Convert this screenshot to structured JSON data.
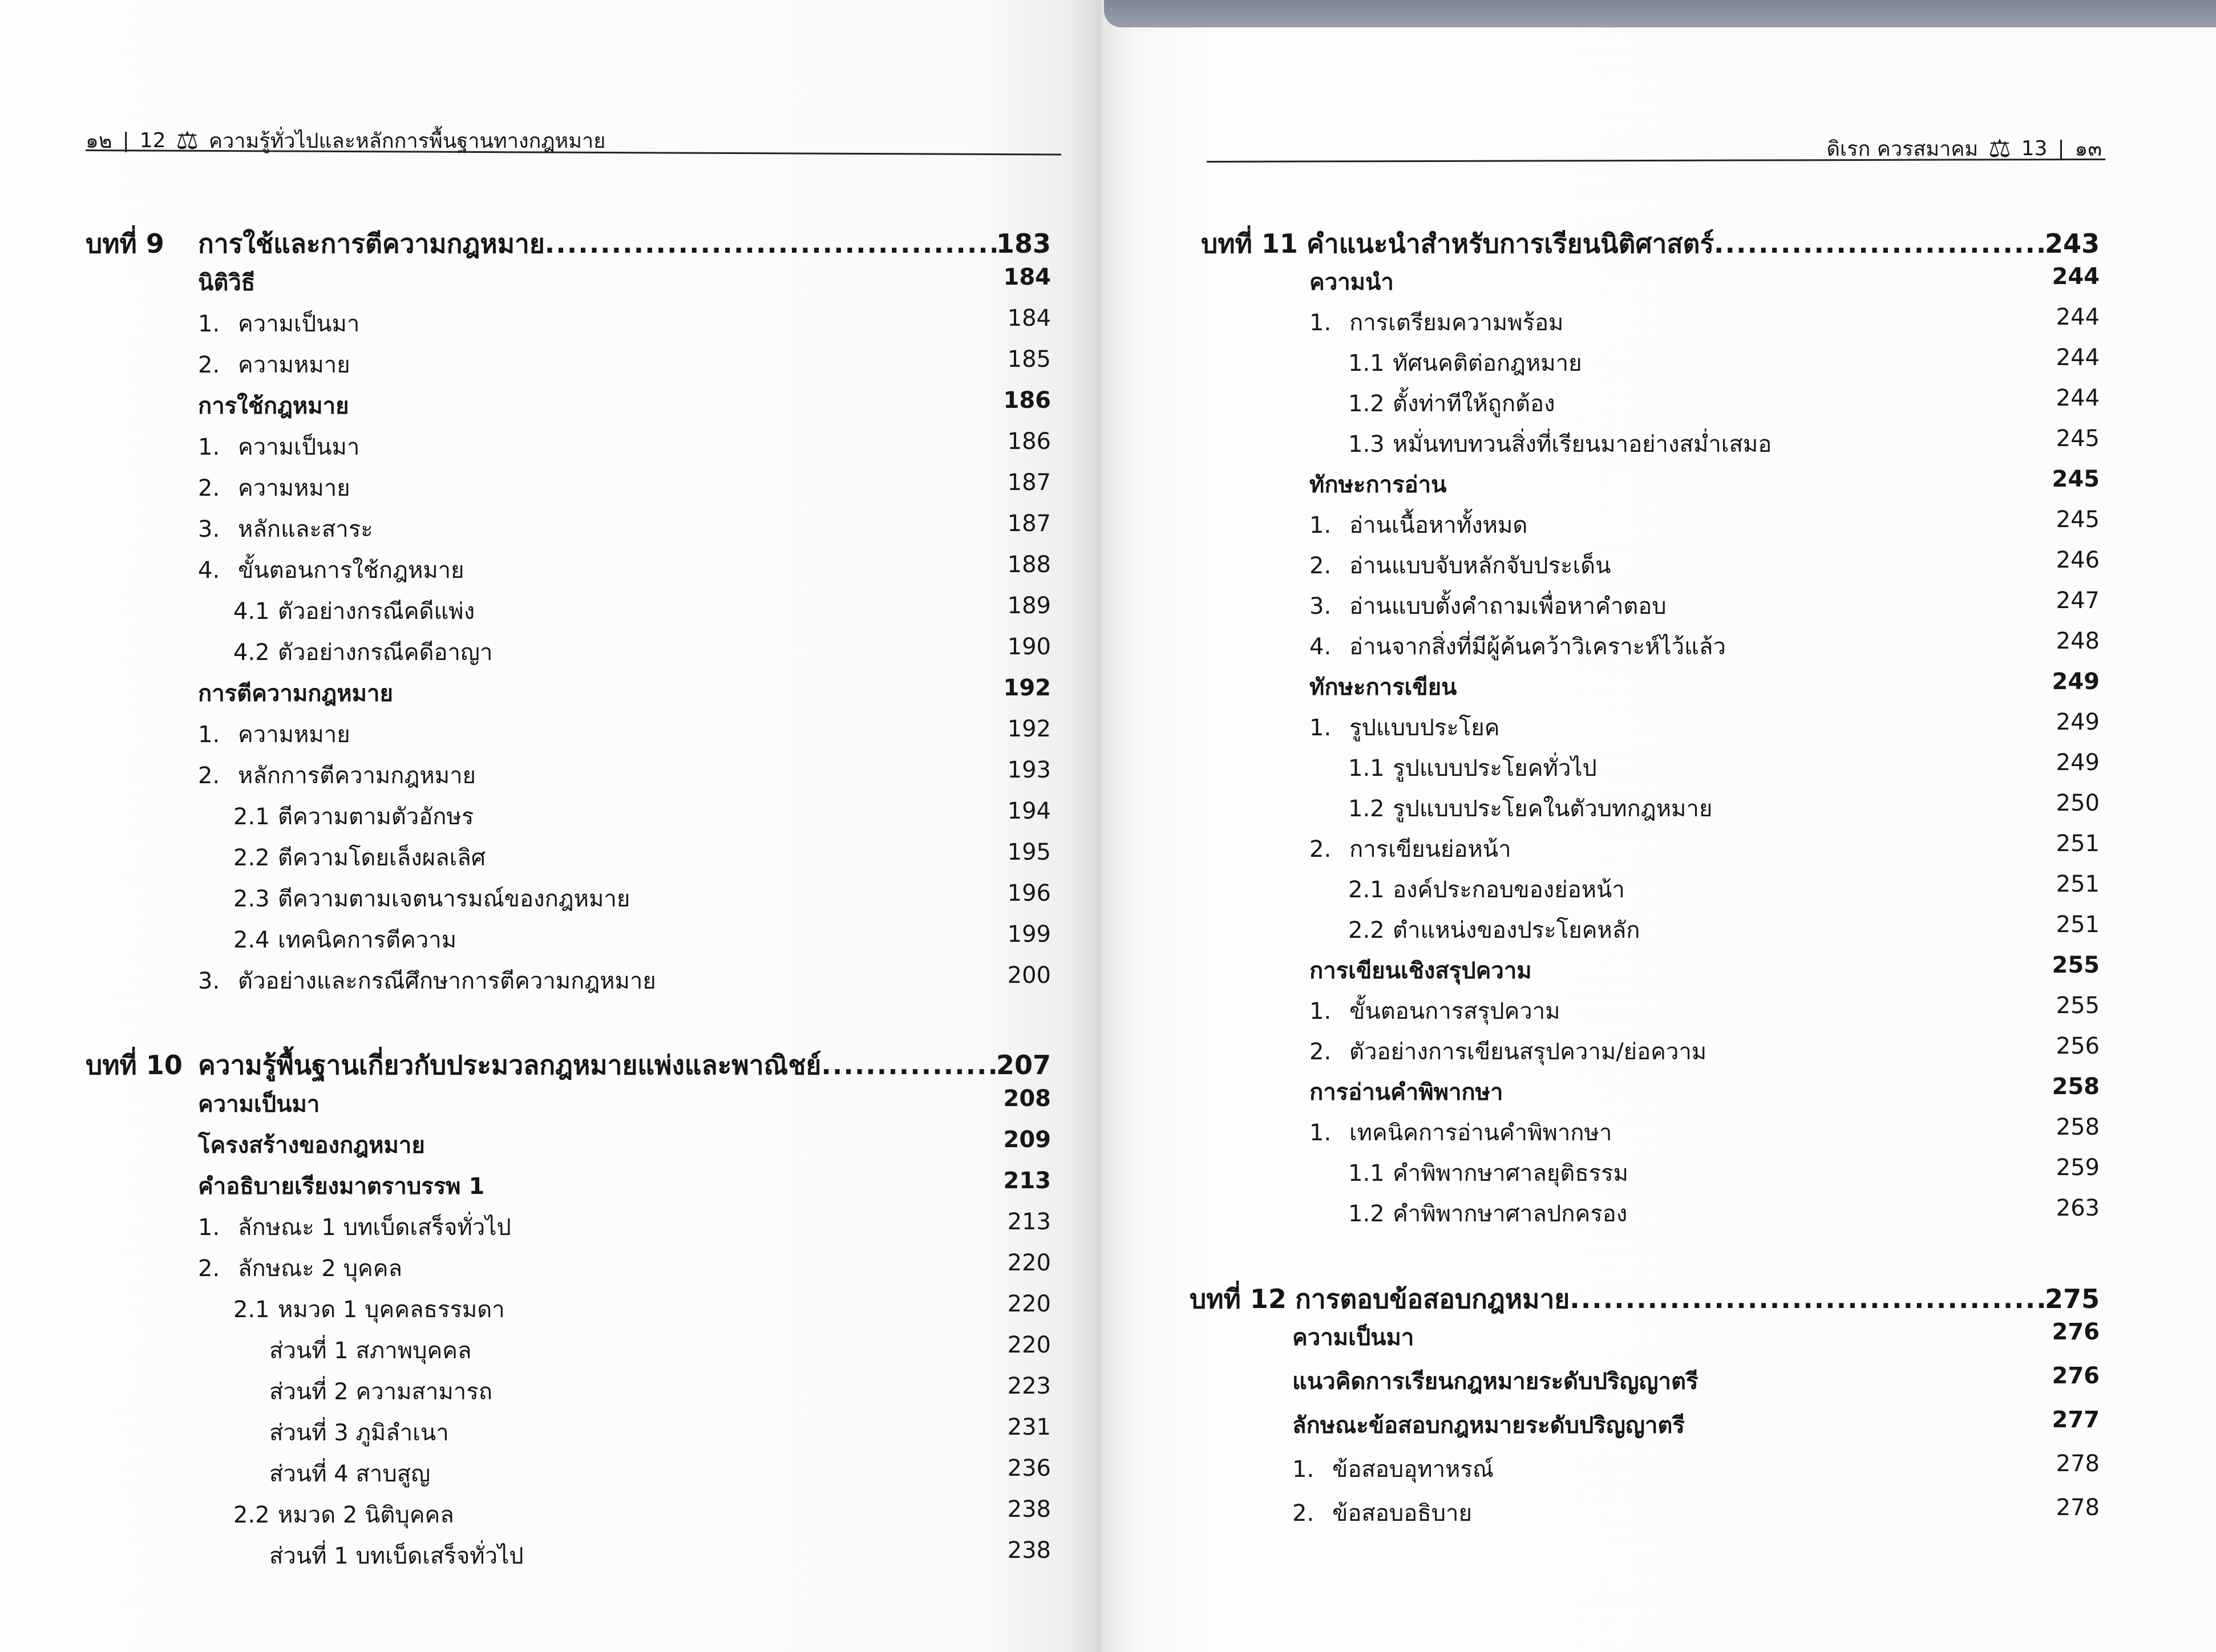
{
  "left_page": {
    "header": {
      "page_thai": "๑๒",
      "page": "12",
      "title": "ความรู้ทั่วไปและหลักการพื้นฐานทางกฎหมาย",
      "icon": "scales-of-justice-icon"
    },
    "entries": [
      {
        "chapter": "บทที่ 9",
        "label": "การใช้และการตีความกฎหมาย",
        "page": "183"
      },
      {
        "level": 0,
        "bold": true,
        "label": "นิติวิธี",
        "page": "184"
      },
      {
        "level": 0,
        "num": "1.",
        "label": "ความเป็นมา",
        "page": "184"
      },
      {
        "level": 0,
        "num": "2.",
        "label": "ความหมาย",
        "page": "185"
      },
      {
        "level": 0,
        "bold": true,
        "label": "การใช้กฎหมาย",
        "page": "186"
      },
      {
        "level": 0,
        "num": "1.",
        "label": "ความเป็นมา",
        "page": "186"
      },
      {
        "level": 0,
        "num": "2.",
        "label": "ความหมาย",
        "page": "187"
      },
      {
        "level": 0,
        "num": "3.",
        "label": "หลักและสาระ",
        "page": "187"
      },
      {
        "level": 0,
        "num": "4.",
        "label": "ขั้นตอนการใช้กฎหมาย",
        "page": "188"
      },
      {
        "level": 1,
        "num": "4.1",
        "label": "ตัวอย่างกรณีคดีแพ่ง",
        "page": "189"
      },
      {
        "level": 1,
        "num": "4.2",
        "label": "ตัวอย่างกรณีคดีอาญา",
        "page": "190"
      },
      {
        "level": 0,
        "bold": true,
        "label": "การตีความกฎหมาย",
        "page": "192"
      },
      {
        "level": 0,
        "num": "1.",
        "label": "ความหมาย",
        "page": "192"
      },
      {
        "level": 0,
        "num": "2.",
        "label": "หลักการตีความกฎหมาย",
        "page": "193"
      },
      {
        "level": 1,
        "num": "2.1",
        "label": "ตีความตามตัวอักษร",
        "page": "194"
      },
      {
        "level": 1,
        "num": "2.2",
        "label": "ตีความโดยเล็งผลเลิศ",
        "page": "195"
      },
      {
        "level": 1,
        "num": "2.3",
        "label": "ตีความตามเจตนารมณ์ของกฎหมาย",
        "page": "196"
      },
      {
        "level": 1,
        "num": "2.4",
        "label": "เทคนิคการตีความ",
        "page": "199"
      },
      {
        "level": 0,
        "num": "3.",
        "label": "ตัวอย่างและกรณีศึกษาการตีความกฎหมาย",
        "page": "200"
      },
      {
        "chapter": "บทที่ 10",
        "label": "ความรู้พื้นฐานเกี่ยวกับประมวลกฎหมายแพ่งและพาณิชย์",
        "page": "207"
      },
      {
        "level": 0,
        "bold": true,
        "label": "ความเป็นมา",
        "page": "208"
      },
      {
        "level": 0,
        "bold": true,
        "label": "โครงสร้างของกฎหมาย",
        "page": "209"
      },
      {
        "level": 0,
        "bold": true,
        "label": "คำอธิบายเรียงมาตราบรรพ 1",
        "page": "213"
      },
      {
        "level": 0,
        "num": "1.",
        "label": "ลักษณะ 1 บทเบ็ดเสร็จทั่วไป",
        "page": "213"
      },
      {
        "level": 0,
        "num": "2.",
        "label": "ลักษณะ 2 บุคคล",
        "page": "220"
      },
      {
        "level": 1,
        "num": "2.1",
        "label": "หมวด 1 บุคคลธรรมดา",
        "page": "220"
      },
      {
        "level": 2,
        "label": "ส่วนที่ 1 สภาพบุคคล",
        "page": "220"
      },
      {
        "level": 2,
        "label": "ส่วนที่ 2 ความสามารถ",
        "page": "223"
      },
      {
        "level": 2,
        "label": "ส่วนที่ 3 ภูมิลำเนา",
        "page": "231"
      },
      {
        "level": 2,
        "label": "ส่วนที่ 4 สาบสูญ",
        "page": "236"
      },
      {
        "level": 1,
        "num": "2.2",
        "label": "หมวด 2 นิติบุคคล",
        "page": "238"
      },
      {
        "level": 2,
        "label": "ส่วนที่ 1 บทเบ็ดเสร็จทั่วไป",
        "page": "238"
      }
    ]
  },
  "right_page": {
    "header": {
      "author": "ดิเรก ควรสมาคม",
      "page": "13",
      "page_thai": "๑๓",
      "icon": "scales-of-justice-icon"
    },
    "entries": [
      {
        "chapter": "บทที่ 11",
        "label": "คำแนะนำสำหรับการเรียนนิติศาสตร์",
        "page": "243"
      },
      {
        "level": 0,
        "bold": true,
        "label": "ความนำ",
        "page": "244"
      },
      {
        "level": 0,
        "num": "1.",
        "label": "การเตรียมความพร้อม",
        "page": "244"
      },
      {
        "level": 1,
        "num": "1.1",
        "label": "ทัศนคติต่อกฎหมาย",
        "page": "244"
      },
      {
        "level": 1,
        "num": "1.2",
        "label": "ตั้งท่าทีให้ถูกต้อง",
        "page": "244"
      },
      {
        "level": 1,
        "num": "1.3",
        "label": "หมั่นทบทวนสิ่งที่เรียนมาอย่างสม่ำเสมอ",
        "page": "245"
      },
      {
        "level": 0,
        "bold": true,
        "label": "ทักษะการอ่าน",
        "page": "245"
      },
      {
        "level": 0,
        "num": "1.",
        "label": "อ่านเนื้อหาทั้งหมด",
        "page": "245"
      },
      {
        "level": 0,
        "num": "2.",
        "label": "อ่านแบบจับหลักจับประเด็น",
        "page": "246"
      },
      {
        "level": 0,
        "num": "3.",
        "label": "อ่านแบบตั้งคำถามเพื่อหาคำตอบ",
        "page": "247"
      },
      {
        "level": 0,
        "num": "4.",
        "label": "อ่านจากสิ่งที่มีผู้ค้นคว้าวิเคราะห์ไว้แล้ว",
        "page": "248"
      },
      {
        "level": 0,
        "bold": true,
        "label": "ทักษะการเขียน",
        "page": "249"
      },
      {
        "level": 0,
        "num": "1.",
        "label": "รูปแบบประโยค",
        "page": "249"
      },
      {
        "level": 1,
        "num": "1.1",
        "label": "รูปแบบประโยคทั่วไป",
        "page": "249"
      },
      {
        "level": 1,
        "num": "1.2",
        "label": "รูปแบบประโยคในตัวบทกฎหมาย",
        "page": "250"
      },
      {
        "level": 0,
        "num": "2.",
        "label": "การเขียนย่อหน้า",
        "page": "251"
      },
      {
        "level": 1,
        "num": "2.1",
        "label": "องค์ประกอบของย่อหน้า",
        "page": "251"
      },
      {
        "level": 1,
        "num": "2.2",
        "label": "ตำแหน่งของประโยคหลัก",
        "page": "251"
      },
      {
        "level": 0,
        "bold": true,
        "label": "การเขียนเชิงสรุปความ",
        "page": "255"
      },
      {
        "level": 0,
        "num": "1.",
        "label": "ขั้นตอนการสรุปความ",
        "page": "255"
      },
      {
        "level": 0,
        "num": "2.",
        "label": "ตัวอย่างการเขียนสรุปความ/ย่อความ",
        "page": "256"
      },
      {
        "level": 0,
        "bold": true,
        "label": "การอ่านคำพิพากษา",
        "page": "258"
      },
      {
        "level": 0,
        "num": "1.",
        "label": "เทคนิคการอ่านคำพิพากษา",
        "page": "258"
      },
      {
        "level": 1,
        "num": "1.1",
        "label": "คำพิพากษาศาลยุติธรรม",
        "page": "259"
      },
      {
        "level": 1,
        "num": "1.2",
        "label": "คำพิพากษาศาลปกครอง",
        "page": "263"
      },
      {
        "chapter": "บทที่ 12",
        "label": "การตอบข้อสอบกฎหมาย",
        "page": "275"
      },
      {
        "level": 0,
        "bold": true,
        "label": "ความเป็นมา",
        "page": "276"
      },
      {
        "level": 0,
        "bold": true,
        "label": "แนวคิดการเรียนกฎหมายระดับปริญญาตรี",
        "page": "276"
      },
      {
        "level": 0,
        "bold": true,
        "label": "ลักษณะข้อสอบกฎหมายระดับปริญญาตรี",
        "page": "277"
      },
      {
        "level": 0,
        "num": "1.",
        "label": "ข้อสอบอุทาหรณ์",
        "page": "278"
      },
      {
        "level": 0,
        "num": "2.",
        "label": "ข้อสอบอธิบาย",
        "page": "278"
      }
    ]
  }
}
